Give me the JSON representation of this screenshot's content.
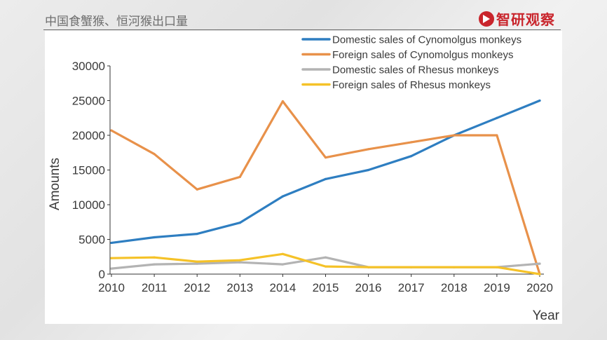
{
  "header": {
    "title": "中国食蟹猴、恒河猴出口量",
    "brand_text": "智研观察",
    "brand_icon": "play-circle-icon",
    "brand_color": "#c9252c"
  },
  "chart_data": {
    "type": "line",
    "title": "",
    "xlabel": "Year",
    "ylabel": "Amounts",
    "x": [
      "2010",
      "2011",
      "2012",
      "2013",
      "2014",
      "2015",
      "2016",
      "2017",
      "2018",
      "2019",
      "2020"
    ],
    "ylim": [
      0,
      30000
    ],
    "yticks": [
      0,
      5000,
      10000,
      15000,
      20000,
      25000,
      30000
    ],
    "yticklabels": [
      "0",
      "5000",
      "10000",
      "15000",
      "20000",
      "25000",
      "30000"
    ],
    "grid": false,
    "legend_position": "top-right",
    "series": [
      {
        "name": "Domestic sales of Cynomolgus monkeys",
        "color": "#2e7ec1",
        "values": [
          4500,
          5300,
          5800,
          7400,
          11200,
          13700,
          15000,
          17000,
          20000,
          22500,
          25000
        ]
      },
      {
        "name": "Foreign sales of Cynomolgus monkeys",
        "color": "#e8914a",
        "values": [
          20700,
          17300,
          12200,
          14000,
          24900,
          16800,
          18000,
          19000,
          20000,
          20000,
          0
        ]
      },
      {
        "name": "Domestic sales of Rhesus monkeys",
        "color": "#b3b3b3",
        "values": [
          800,
          1400,
          1500,
          1700,
          1400,
          2400,
          1000,
          1000,
          1000,
          1000,
          1500
        ]
      },
      {
        "name": "Foreign sales of Rhesus monkeys",
        "color": "#f5c228",
        "values": [
          2300,
          2400,
          1800,
          2000,
          2900,
          1100,
          1000,
          1000,
          1000,
          1000,
          0
        ]
      }
    ]
  }
}
